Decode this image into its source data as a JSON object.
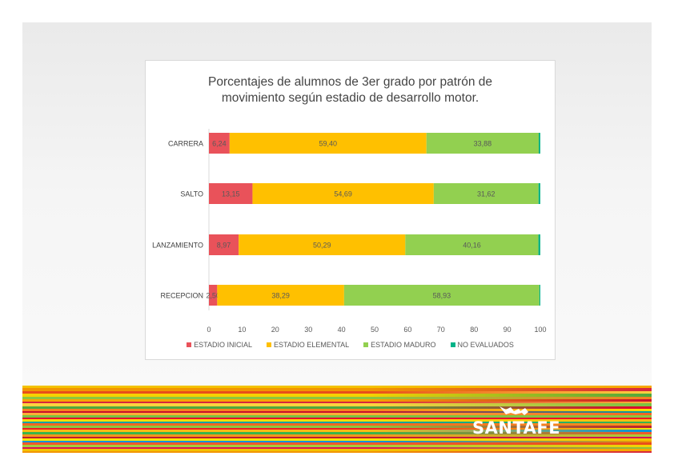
{
  "chart_data": {
    "type": "bar",
    "orientation": "horizontal",
    "stacked": true,
    "title": "Porcentajes de alumnos de 3er grado por patrón de movimiento según estadio de desarrollo motor.",
    "title_lines": [
      "Porcentajes de alumnos de 3er grado por patrón de",
      "movimiento según estadio de desarrollo motor."
    ],
    "categories": [
      "CARRERA",
      "SALTO",
      "LANZAMIENTO",
      "RECEPCION"
    ],
    "series": [
      {
        "name": "ESTADIO INICIAL",
        "color": "#e9525a",
        "values": [
          6.24,
          13.15,
          8.97,
          2.5
        ],
        "labels": [
          "6,24",
          "13,15",
          "8,97",
          "2,50"
        ]
      },
      {
        "name": "ESTADIO ELEMENTAL",
        "color": "#ffc000",
        "values": [
          59.4,
          54.69,
          50.29,
          38.29
        ],
        "labels": [
          "59,40",
          "54,69",
          "50,29",
          "38,29"
        ]
      },
      {
        "name": "ESTADIO MADURO",
        "color": "#92d050",
        "values": [
          33.88,
          31.62,
          40.16,
          58.93
        ],
        "labels": [
          "33,88",
          "31,62",
          "40,16",
          "58,93"
        ]
      },
      {
        "name": "NO EVALUADOS",
        "color": "#00b388",
        "values": [
          0.48,
          0.54,
          0.58,
          0.28
        ],
        "labels": [
          "",
          "",
          "",
          ""
        ]
      }
    ],
    "xlim": [
      0,
      100
    ],
    "xticks": [
      0,
      10,
      20,
      30,
      40,
      50,
      60,
      70,
      80,
      90,
      100
    ],
    "legend_position": "bottom"
  },
  "brand": {
    "logo_text": "SANTAFE"
  }
}
